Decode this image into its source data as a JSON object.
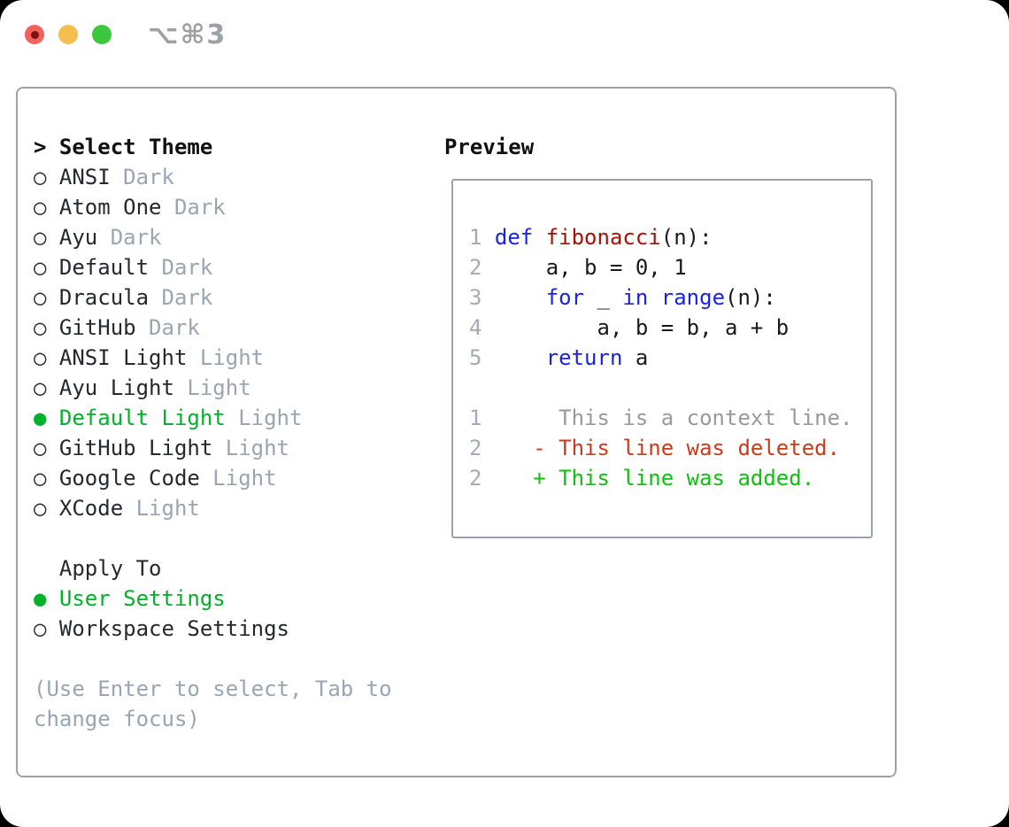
{
  "titlebar": {
    "shortcut": "⌥⌘3"
  },
  "theme_panel": {
    "title_prefix": ">",
    "title": "Select Theme",
    "themes": [
      {
        "name": "ANSI",
        "variant": "Dark",
        "selected": false
      },
      {
        "name": "Atom One",
        "variant": "Dark",
        "selected": false
      },
      {
        "name": "Ayu",
        "variant": "Dark",
        "selected": false
      },
      {
        "name": "Default",
        "variant": "Dark",
        "selected": false
      },
      {
        "name": "Dracula",
        "variant": "Dark",
        "selected": false
      },
      {
        "name": "GitHub",
        "variant": "Dark",
        "selected": false
      },
      {
        "name": "ANSI Light",
        "variant": "Light",
        "selected": false
      },
      {
        "name": "Ayu Light",
        "variant": "Light",
        "selected": false
      },
      {
        "name": "Default Light",
        "variant": "Light",
        "selected": true
      },
      {
        "name": "GitHub Light",
        "variant": "Light",
        "selected": false
      },
      {
        "name": "Google Code",
        "variant": "Light",
        "selected": false
      },
      {
        "name": "XCode",
        "variant": "Light",
        "selected": false
      }
    ],
    "apply_to": {
      "label": "Apply To",
      "options": [
        {
          "name": "User Settings",
          "selected": true
        },
        {
          "name": "Workspace Settings",
          "selected": false
        }
      ]
    },
    "hint_lines": [
      "(Use Enter to select, Tab to",
      "change focus)"
    ]
  },
  "preview": {
    "title": "Preview",
    "code_lines": [
      [
        {
          "t": "1 ",
          "c": "lineno"
        },
        {
          "t": "def ",
          "c": "keyword"
        },
        {
          "t": "fibonacci",
          "c": "function"
        },
        {
          "t": "(n):",
          "c": "plain"
        }
      ],
      [
        {
          "t": "2 ",
          "c": "lineno"
        },
        {
          "t": "    a, b = 0, 1",
          "c": "plain"
        }
      ],
      [
        {
          "t": "3 ",
          "c": "lineno"
        },
        {
          "t": "    ",
          "c": "plain"
        },
        {
          "t": "for",
          "c": "keyword"
        },
        {
          "t": " _ ",
          "c": "plain"
        },
        {
          "t": "in",
          "c": "keyword"
        },
        {
          "t": " ",
          "c": "plain"
        },
        {
          "t": "range",
          "c": "keyword"
        },
        {
          "t": "(n):",
          "c": "plain"
        }
      ],
      [
        {
          "t": "4 ",
          "c": "lineno"
        },
        {
          "t": "        a, b = b, a + b",
          "c": "plain"
        }
      ],
      [
        {
          "t": "5 ",
          "c": "lineno"
        },
        {
          "t": "    ",
          "c": "plain"
        },
        {
          "t": "return",
          "c": "keyword"
        },
        {
          "t": " a",
          "c": "plain"
        }
      ],
      [],
      [
        {
          "t": "1 ",
          "c": "lineno"
        },
        {
          "t": "     This is a context line.",
          "c": "context"
        }
      ],
      [
        {
          "t": "2 ",
          "c": "lineno"
        },
        {
          "t": "   - This line was deleted.",
          "c": "deleted"
        }
      ],
      [
        {
          "t": "2 ",
          "c": "lineno"
        },
        {
          "t": "   + This line was added.",
          "c": "added"
        }
      ]
    ]
  },
  "colors": {
    "page_bg": "#000000",
    "window_bg": "#ffffff",
    "panel_border": "#9aa3ad",
    "text_black": "#111111",
    "text_dark": "#24292e",
    "muted": "#9aa5b2",
    "selection_green": "#00b228",
    "keyword_blue": "#1b23e2",
    "function_red": "#a31208",
    "plain_code": "#1a1a1a",
    "lineno_gray": "#a3abb5",
    "context_gray": "#9a9a9a",
    "deleted_red": "#c93a1e",
    "added_green": "#0fc00f",
    "shortcut_gray": "#9da1a6",
    "traffic_red": "#f4605a",
    "traffic_red_dot": "#7b1216",
    "traffic_yellow": "#f6be4f",
    "traffic_green": "#3cc83e"
  }
}
